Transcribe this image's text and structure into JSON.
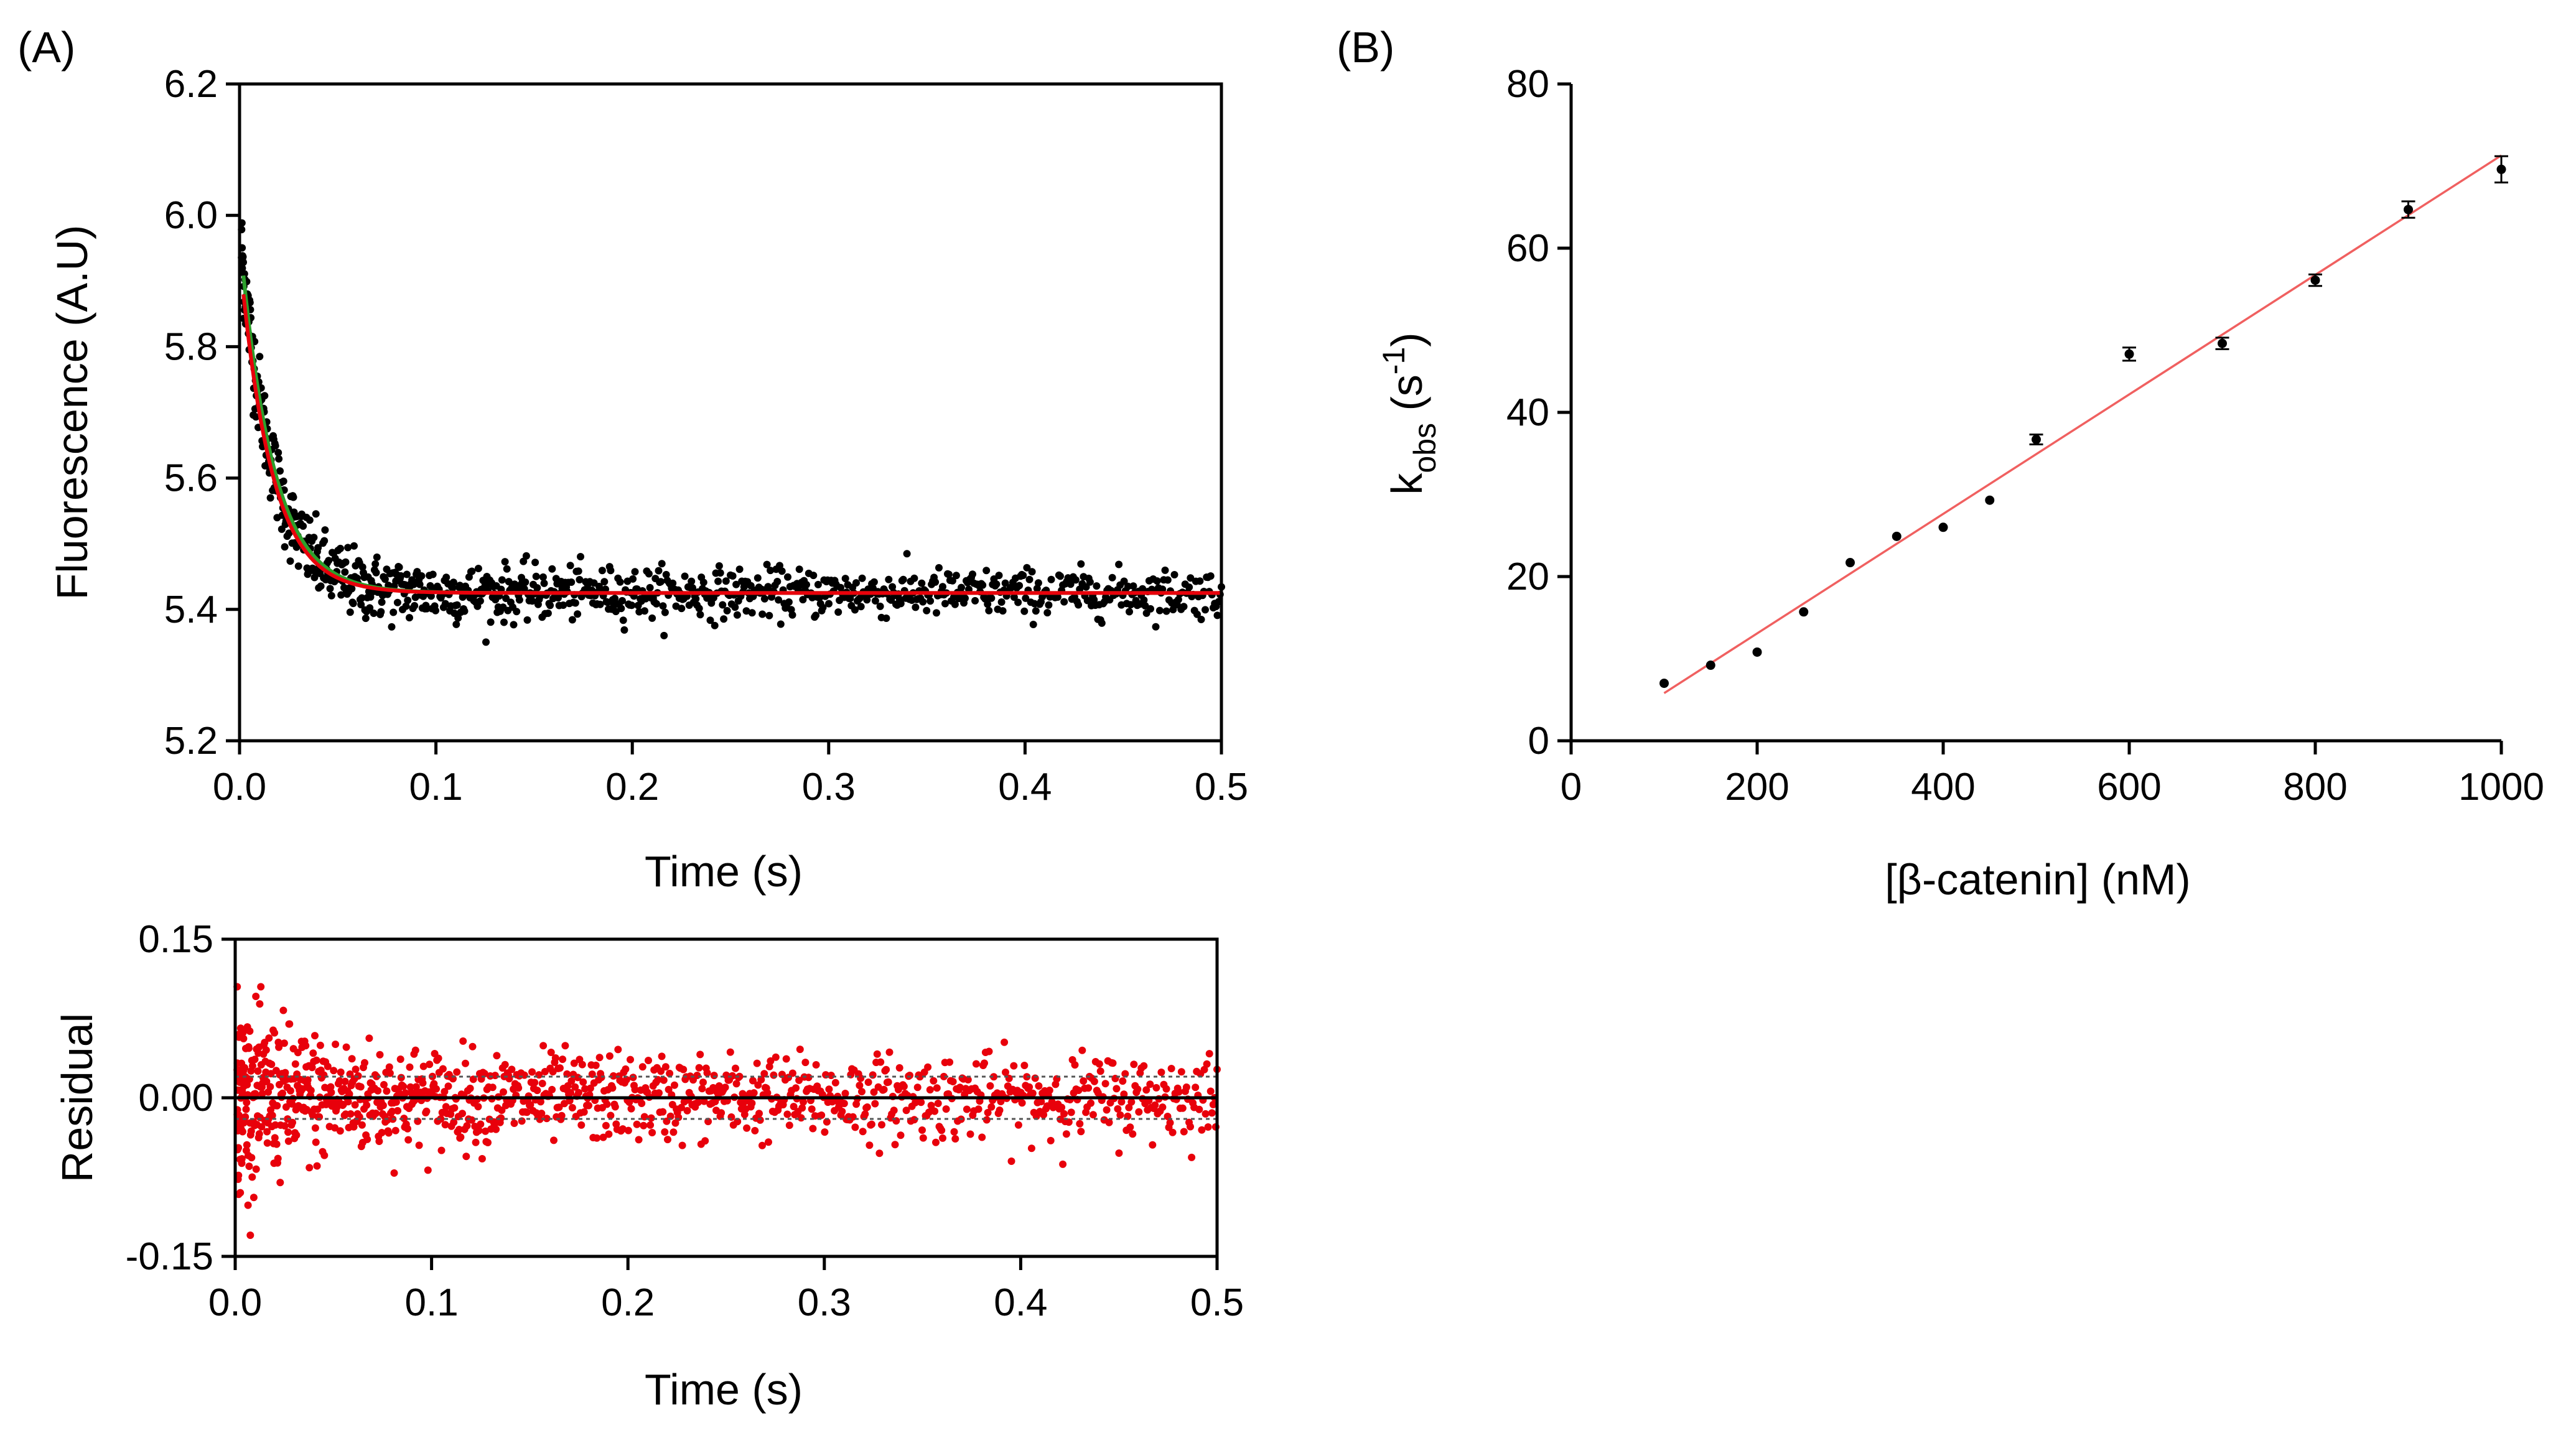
{
  "chart_data": [
    {
      "id": "A-top",
      "panel_label": "(A)",
      "type": "scatter",
      "xlabel": "Time (s)",
      "ylabel": "Fluorescence (A.U)",
      "xlim": [
        0,
        0.5
      ],
      "ylim": [
        5.2,
        6.2
      ],
      "xticks": [
        0,
        0.1,
        0.2,
        0.3,
        0.4,
        0.5
      ],
      "xtick_labels": [
        "0.0",
        "0.1",
        "0.2",
        "0.3",
        "0.4",
        "0.5"
      ],
      "yticks": [
        5.2,
        5.4,
        5.6,
        5.8,
        6.0,
        6.2
      ],
      "ytick_labels": [
        "5.2",
        "5.4",
        "5.6",
        "5.8",
        "6.0",
        "6.2"
      ],
      "series": [
        {
          "name": "data",
          "kind": "points",
          "color": "#000000",
          "model": "exponential decay",
          "y_inf": 5.425,
          "amplitude": 0.555,
          "rate": 62.3,
          "x_range": [
            0.001,
            0.5
          ],
          "n_points": 980,
          "noise_sd_early": 0.035,
          "noise_sd_late": 0.018
        },
        {
          "name": "fit (green)",
          "kind": "line",
          "color": "#2ca02c",
          "y_inf": 5.425,
          "amplitude": 0.545,
          "rate": 60,
          "x_range": [
            0.002,
            0.5
          ]
        },
        {
          "name": "fit (red)",
          "kind": "line",
          "color": "#e8000b",
          "y_inf": 5.425,
          "amplitude": 0.515,
          "rate": 62.3,
          "x_range": [
            0.002,
            0.5
          ]
        }
      ]
    },
    {
      "id": "A-bottom",
      "type": "scatter",
      "xlabel": "Time (s)",
      "ylabel": "Residual",
      "xlim": [
        0,
        0.5
      ],
      "ylim": [
        -0.15,
        0.15
      ],
      "xticks": [
        0,
        0.1,
        0.2,
        0.3,
        0.4,
        0.5
      ],
      "xtick_labels": [
        "0.0",
        "0.1",
        "0.2",
        "0.3",
        "0.4",
        "0.5"
      ],
      "yticks": [
        -0.15,
        0.0,
        0.15
      ],
      "ytick_labels": [
        "-0.15",
        "0.00",
        "0.15"
      ],
      "reference_lines": [
        {
          "y": 0.0,
          "style": "solid",
          "color": "#000000"
        },
        {
          "y": 0.02,
          "style": "dotted",
          "color": "#555555"
        },
        {
          "y": -0.02,
          "style": "dotted",
          "color": "#555555"
        }
      ],
      "series": [
        {
          "name": "residuals",
          "kind": "points",
          "color": "#e8000b",
          "x_range": [
            0.001,
            0.5
          ],
          "n_points": 1150,
          "noise_sd_early": 0.045,
          "noise_sd_late": 0.02
        }
      ]
    },
    {
      "id": "B",
      "panel_label": "(B)",
      "type": "scatter",
      "xlabel": "[β-catenin] (nM)",
      "ylabel_parts": [
        "k",
        "obs",
        " (s",
        "-1",
        ")"
      ],
      "xlim": [
        0,
        1000
      ],
      "ylim": [
        0,
        80
      ],
      "xticks": [
        0,
        200,
        400,
        600,
        800,
        1000
      ],
      "xtick_labels": [
        "0",
        "200",
        "400",
        "600",
        "800",
        "1000"
      ],
      "yticks": [
        0,
        20,
        40,
        60,
        80
      ],
      "ytick_labels": [
        "0",
        "20",
        "40",
        "60",
        "80"
      ],
      "x": [
        100,
        150,
        200,
        250,
        300,
        350,
        400,
        450,
        500,
        600,
        700,
        800,
        900,
        1000
      ],
      "y": [
        7.0,
        9.2,
        10.8,
        15.7,
        21.7,
        24.9,
        26.0,
        29.3,
        36.7,
        47.1,
        48.4,
        56.1,
        64.7,
        69.6
      ],
      "errors": [
        0.3,
        0.3,
        0.3,
        0.4,
        0.3,
        0.3,
        0.3,
        0.3,
        0.6,
        0.8,
        0.7,
        0.7,
        1.0,
        1.6
      ],
      "point_color": "#000000",
      "fit_line": {
        "color": "#f06060",
        "x": [
          100,
          1000
        ],
        "y": [
          5.8,
          71.3
        ]
      }
    }
  ]
}
